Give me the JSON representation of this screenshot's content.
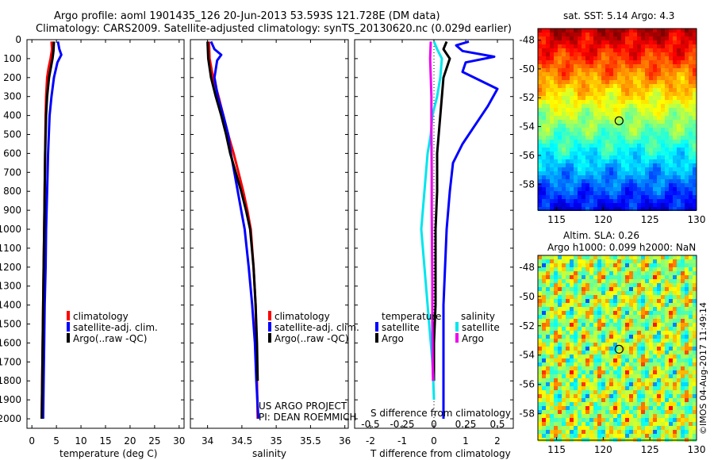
{
  "header": {
    "line1": "Argo profile: aoml 1901435_126 20-Jun-2013 53.593S 121.728E (DM data)",
    "line2": "Climatology: CARS2009. Satellite-adjusted climatology: synTS_20130620.nc (0.029d earlier)"
  },
  "colors": {
    "climatology": "#ff0000",
    "satellite": "#0000ff",
    "argo": "#000000",
    "sal_satellite": "#00e5ee",
    "sal_argo": "#ee00ee"
  },
  "depth_ticks": [
    0,
    100,
    200,
    300,
    400,
    500,
    600,
    700,
    800,
    900,
    1000,
    1100,
    1200,
    1300,
    1400,
    1500,
    1600,
    1700,
    1800,
    1900,
    2000
  ],
  "legend_profile": [
    "climatology",
    "satellite-adj. clim.",
    "Argo(..raw -QC)"
  ],
  "legend_diff": {
    "temperature_title": "temperature",
    "salinity_title": "salinity",
    "t_satellite": "satellite",
    "t_argo": "Argo",
    "s_satellite": "satellite",
    "s_argo": "Argo"
  },
  "pi_text": [
    "US ARGO PROJECT",
    "PI: DEAN ROEMMICH"
  ],
  "sst_map": {
    "title": "sat. SST: 5.14 Argo: 4.3",
    "xticks": [
      115,
      120,
      125,
      130
    ],
    "yticks": [
      -48,
      -50,
      -52,
      -54,
      -56,
      -58
    ],
    "marker": [
      121.7,
      -53.6
    ]
  },
  "sla_map": {
    "title1": "Altim. SLA: 0.26",
    "title2": "Argo h1000: 0.099 h2000: NaN",
    "xticks": [
      115,
      120,
      125,
      130
    ],
    "yticks": [
      -48,
      -50,
      -52,
      -54,
      -56,
      -58
    ],
    "marker": [
      121.7,
      -53.6
    ]
  },
  "credit": "©IMOS 04-Aug-2017 11:49:14",
  "chart_data": [
    {
      "type": "line",
      "xlabel": "temperature (deg C)",
      "ylabel": "",
      "xlim": [
        -1,
        31
      ],
      "ylim": [
        2050,
        0
      ],
      "xticks": [
        0,
        5,
        10,
        15,
        20,
        25,
        30
      ],
      "series": [
        {
          "name": "climatology",
          "color": "#ff0000",
          "points": [
            [
              4.0,
              10
            ],
            [
              4.1,
              50
            ],
            [
              3.8,
              100
            ],
            [
              3.4,
              150
            ],
            [
              3.1,
              200
            ],
            [
              2.9,
              300
            ],
            [
              2.8,
              400
            ],
            [
              2.7,
              600
            ],
            [
              2.6,
              800
            ],
            [
              2.5,
              1000
            ],
            [
              2.4,
              1200
            ],
            [
              2.3,
              1400
            ],
            [
              2.2,
              1600
            ],
            [
              2.1,
              1800
            ],
            [
              2.0,
              2000
            ]
          ]
        },
        {
          "name": "satellite-adj. clim.",
          "color": "#0000ff",
          "points": [
            [
              5.3,
              10
            ],
            [
              5.6,
              50
            ],
            [
              6.0,
              80
            ],
            [
              5.2,
              120
            ],
            [
              4.5,
              200
            ],
            [
              4.0,
              300
            ],
            [
              3.6,
              400
            ],
            [
              3.3,
              600
            ],
            [
              3.1,
              800
            ],
            [
              2.9,
              1000
            ],
            [
              2.8,
              1200
            ],
            [
              2.6,
              1400
            ],
            [
              2.5,
              1600
            ],
            [
              2.4,
              1800
            ],
            [
              2.3,
              2000
            ]
          ]
        },
        {
          "name": "Argo(..raw -QC)",
          "color": "#000000",
          "points": [
            [
              4.5,
              10
            ],
            [
              4.4,
              60
            ],
            [
              4.2,
              100
            ],
            [
              3.5,
              200
            ],
            [
              3.1,
              300
            ],
            [
              2.9,
              400
            ],
            [
              2.7,
              600
            ],
            [
              2.6,
              800
            ],
            [
              2.5,
              1000
            ],
            [
              2.4,
              1200
            ],
            [
              2.3,
              1400
            ],
            [
              2.2,
              1600
            ],
            [
              2.1,
              1800
            ],
            [
              2.0,
              2000
            ]
          ]
        }
      ]
    },
    {
      "type": "line",
      "xlabel": "salinity",
      "ylabel": "",
      "xlim": [
        33.75,
        36.05
      ],
      "ylim": [
        2050,
        0
      ],
      "xticks": [
        34,
        34.5,
        35,
        35.5,
        36
      ],
      "series": [
        {
          "name": "climatology",
          "color": "#ff0000",
          "points": [
            [
              34.02,
              10
            ],
            [
              34.03,
              100
            ],
            [
              34.08,
              200
            ],
            [
              34.16,
              300
            ],
            [
              34.23,
              400
            ],
            [
              34.3,
              500
            ],
            [
              34.38,
              600
            ],
            [
              34.45,
              700
            ],
            [
              34.52,
              800
            ],
            [
              34.58,
              900
            ],
            [
              34.63,
              1000
            ],
            [
              34.67,
              1200
            ],
            [
              34.7,
              1400
            ],
            [
              34.71,
              1600
            ],
            [
              34.72,
              1800
            ],
            [
              34.73,
              2000
            ]
          ]
        },
        {
          "name": "satellite-adj. clim.",
          "color": "#0000ff",
          "points": [
            [
              34.05,
              10
            ],
            [
              34.1,
              50
            ],
            [
              34.2,
              80
            ],
            [
              34.14,
              110
            ],
            [
              34.1,
              200
            ],
            [
              34.15,
              300
            ],
            [
              34.23,
              400
            ],
            [
              34.3,
              500
            ],
            [
              34.34,
              600
            ],
            [
              34.39,
              700
            ],
            [
              34.44,
              800
            ],
            [
              34.49,
              900
            ],
            [
              34.54,
              1000
            ],
            [
              34.6,
              1200
            ],
            [
              34.65,
              1400
            ],
            [
              34.69,
              1600
            ],
            [
              34.71,
              1800
            ],
            [
              34.74,
              2000
            ]
          ]
        },
        {
          "name": "Argo(..raw -QC)",
          "color": "#000000",
          "points": [
            [
              34.0,
              10
            ],
            [
              34.01,
              100
            ],
            [
              34.05,
              200
            ],
            [
              34.12,
              300
            ],
            [
              34.2,
              400
            ],
            [
              34.27,
              500
            ],
            [
              34.33,
              600
            ],
            [
              34.41,
              700
            ],
            [
              34.49,
              800
            ],
            [
              34.56,
              900
            ],
            [
              34.62,
              1000
            ],
            [
              34.67,
              1200
            ],
            [
              34.7,
              1400
            ],
            [
              34.72,
              1600
            ],
            [
              34.73,
              1800
            ]
          ]
        }
      ]
    },
    {
      "type": "line",
      "xlabel": "T difference from climatology",
      "x2label": "S difference from climatology",
      "xlim": [
        -2.5,
        2.5
      ],
      "ylim": [
        2050,
        0
      ],
      "xticks": [
        -2,
        -1,
        0,
        1,
        2
      ],
      "x2ticks": [
        "-0.5",
        "-0.25",
        "0",
        "0.25",
        "0.5"
      ],
      "series": [
        {
          "name": "satellite",
          "group": "temperature",
          "color": "#0000ff",
          "points": [
            [
              1.1,
              10
            ],
            [
              0.7,
              30
            ],
            [
              0.9,
              60
            ],
            [
              1.9,
              90
            ],
            [
              1.0,
              120
            ],
            [
              0.9,
              170
            ],
            [
              2.0,
              260
            ],
            [
              1.7,
              350
            ],
            [
              1.3,
              450
            ],
            [
              0.9,
              550
            ],
            [
              0.6,
              650
            ],
            [
              0.5,
              800
            ],
            [
              0.4,
              1000
            ],
            [
              0.35,
              1200
            ],
            [
              0.3,
              1400
            ],
            [
              0.3,
              1600
            ],
            [
              0.3,
              1800
            ],
            [
              0.3,
              2000
            ]
          ]
        },
        {
          "name": "Argo",
          "group": "temperature",
          "color": "#000000",
          "points": [
            [
              0.4,
              10
            ],
            [
              0.3,
              50
            ],
            [
              0.5,
              100
            ],
            [
              0.3,
              200
            ],
            [
              0.25,
              300
            ],
            [
              0.2,
              400
            ],
            [
              0.15,
              500
            ],
            [
              0.1,
              600
            ],
            [
              0.1,
              800
            ],
            [
              0.05,
              1000
            ],
            [
              0.05,
              1200
            ],
            [
              0.05,
              1400
            ],
            [
              0.0,
              1600
            ],
            [
              0.0,
              1800
            ]
          ]
        },
        {
          "name": "satellite",
          "group": "salinity",
          "color": "#00e5ee",
          "points": [
            [
              0.0,
              10
            ],
            [
              0.1,
              50
            ],
            [
              0.25,
              100
            ],
            [
              0.2,
              200
            ],
            [
              0.1,
              300
            ],
            [
              -0.05,
              400
            ],
            [
              -0.1,
              500
            ],
            [
              -0.2,
              600
            ],
            [
              -0.25,
              700
            ],
            [
              -0.3,
              800
            ],
            [
              -0.35,
              900
            ],
            [
              -0.4,
              1000
            ],
            [
              -0.35,
              1100
            ],
            [
              -0.3,
              1200
            ],
            [
              -0.25,
              1300
            ],
            [
              -0.2,
              1400
            ],
            [
              -0.15,
              1500
            ],
            [
              -0.1,
              1600
            ],
            [
              -0.05,
              1700
            ],
            [
              -0.02,
              1800
            ],
            [
              0.0,
              1900
            ]
          ]
        },
        {
          "name": "Argo",
          "group": "salinity",
          "color": "#ee00ee",
          "points": [
            [
              -0.1,
              10
            ],
            [
              -0.12,
              100
            ],
            [
              -0.1,
              200
            ],
            [
              -0.08,
              300
            ],
            [
              -0.08,
              500
            ],
            [
              -0.07,
              700
            ],
            [
              -0.07,
              900
            ],
            [
              -0.06,
              1100
            ],
            [
              -0.05,
              1300
            ],
            [
              -0.05,
              1500
            ],
            [
              -0.04,
              1700
            ],
            [
              -0.03,
              1800
            ]
          ]
        }
      ]
    }
  ]
}
